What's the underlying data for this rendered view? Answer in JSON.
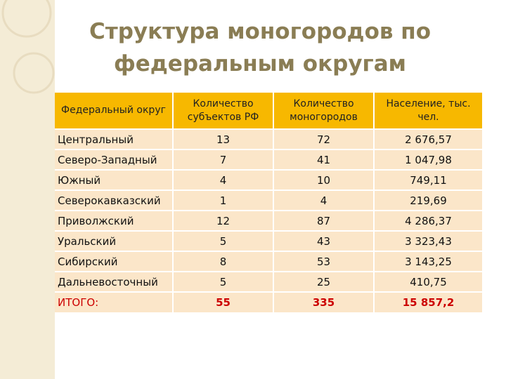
{
  "title": {
    "line1": "Структура моногородов по",
    "line2": "федеральным округам"
  },
  "table": {
    "headers": [
      "Федеральный округ",
      "Количество субъектов РФ",
      "Количество моногородов",
      "Население, тыс. чел."
    ],
    "rows": [
      {
        "district": "Центральный",
        "subjects": "13",
        "monotowns": "72",
        "population": "2 676,57"
      },
      {
        "district": "Северо-Западный",
        "subjects": "7",
        "monotowns": "41",
        "population": "1 047,98"
      },
      {
        "district": "Южный",
        "subjects": "4",
        "monotowns": "10",
        "population": "749,11"
      },
      {
        "district": "Северокавказский",
        "subjects": "1",
        "monotowns": "4",
        "population": "219,69"
      },
      {
        "district": "Приволжский",
        "subjects": "12",
        "monotowns": "87",
        "population": "4 286,37"
      },
      {
        "district": "Уральский",
        "subjects": "5",
        "monotowns": "43",
        "population": "3 323,43"
      },
      {
        "district": "Сибирский",
        "subjects": "8",
        "monotowns": "53",
        "population": "3 143,25"
      },
      {
        "district": "Дальневосточный",
        "subjects": "5",
        "monotowns": "25",
        "population": "410,75"
      }
    ],
    "total": {
      "label": "ИТОГО:",
      "subjects": "55",
      "monotowns": "335",
      "population": "15 857,2"
    }
  },
  "colors": {
    "header_bg": "#f7b800",
    "row_bg": "#fbe6c9",
    "title": "#8a7d54",
    "total_text": "#cc0000",
    "side_band": "#f4ecd6"
  }
}
